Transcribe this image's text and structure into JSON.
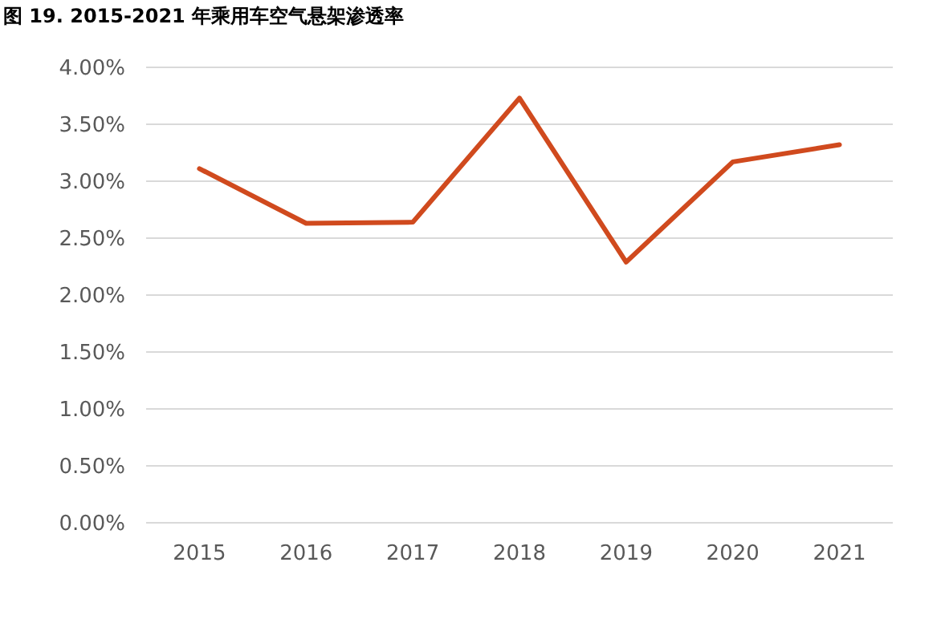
{
  "chart_data": {
    "type": "line",
    "title": "图 19. 2015-2021 年乘用车空气悬架渗透率",
    "categories": [
      "2015",
      "2016",
      "2017",
      "2018",
      "2019",
      "2020",
      "2021"
    ],
    "values": [
      3.11,
      2.63,
      2.64,
      3.73,
      2.29,
      3.17,
      3.32
    ],
    "color": "#d04a1e",
    "ylim": [
      0,
      4
    ],
    "yticks": [
      {
        "value": 0,
        "label": "0.00%"
      },
      {
        "value": 0.5,
        "label": "0.50%"
      },
      {
        "value": 1,
        "label": "1.00%"
      },
      {
        "value": 1.5,
        "label": "1.50%"
      },
      {
        "value": 2,
        "label": "2.00%"
      },
      {
        "value": 2.5,
        "label": "2.50%"
      },
      {
        "value": 3,
        "label": "3.00%"
      },
      {
        "value": 3.5,
        "label": "3.50%"
      },
      {
        "value": 4,
        "label": "4.00%"
      }
    ],
    "grid": "y",
    "marker": "none",
    "line_style": "solid"
  }
}
